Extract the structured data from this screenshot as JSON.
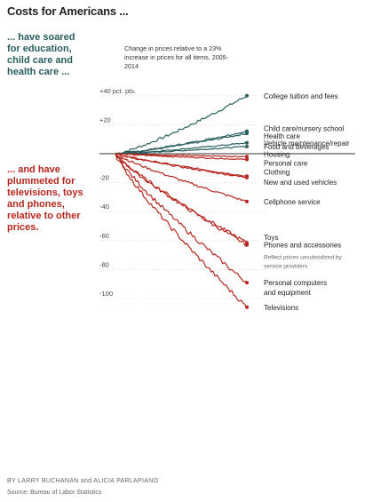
{
  "title": "Costs for Americans ...",
  "note_up": "... have soared for education, child care and health care ...",
  "note_down": "... and have plummeted for televisions, toys and phones, relative to other prices.",
  "subtitle": "Change in prices relative to a 23% increase in prices for all items, 2005-2014",
  "byline": "BY LARRY BUCHANAN and ALICIA PARLAPIANO",
  "source": "Source: Bureau of Labor Statistics",
  "colors": {
    "up": "#2a5f5f",
    "down": "#b5271e",
    "zero": "#333333",
    "grid": "#d4d4d4"
  },
  "chart_data": {
    "type": "line",
    "x_range": [
      2005,
      2014
    ],
    "ylim": [
      -108,
      42
    ],
    "y_ticks": [
      {
        "value": 40,
        "label": "+40 pct. pts."
      },
      {
        "value": 20,
        "label": "+20"
      },
      {
        "value": -20,
        "label": "-20"
      },
      {
        "value": -40,
        "label": "-40"
      },
      {
        "value": -60,
        "label": "-60"
      },
      {
        "value": -80,
        "label": "-80"
      },
      {
        "value": -100,
        "label": "-100"
      }
    ],
    "series": [
      {
        "name": "College tuition and fees",
        "end": 40,
        "direction": "up"
      },
      {
        "name": "Child care/nursery school",
        "end": 15.5,
        "direction": "up"
      },
      {
        "name": "Health care",
        "end": 14,
        "direction": "up"
      },
      {
        "name": "Vehicle maintenance/repair",
        "end": 7.5,
        "direction": "up"
      },
      {
        "name": "Food and beverages",
        "end": 5,
        "direction": "up"
      },
      {
        "name": "Housing",
        "end": -2,
        "direction": "down"
      },
      {
        "name": "Personal care",
        "end": -4,
        "direction": "down"
      },
      {
        "name": "Clothing",
        "end": -15.5,
        "direction": "down"
      },
      {
        "name": "New and used vehicles",
        "end": -16.5,
        "direction": "down"
      },
      {
        "name": "Cellphone service",
        "end": -33,
        "direction": "down"
      },
      {
        "name": "Toys",
        "end": -61.5,
        "direction": "down"
      },
      {
        "name": "Phones and accessories",
        "end": -63,
        "direction": "down",
        "note": "Reflect prices unsubsidized by service providers"
      },
      {
        "name": "Personal computers and equipment",
        "end": -89,
        "direction": "down"
      },
      {
        "name": "Televisions",
        "end": -106,
        "direction": "down"
      }
    ]
  }
}
